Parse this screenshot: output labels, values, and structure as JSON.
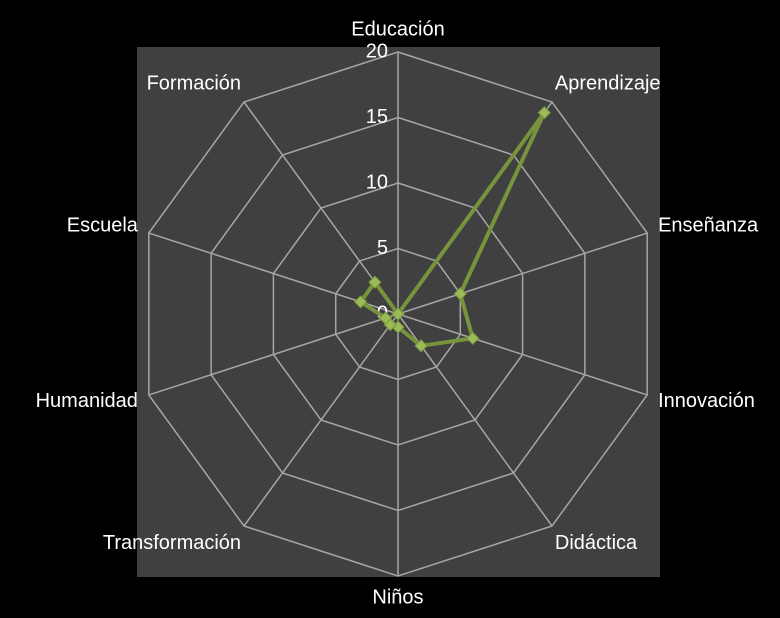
{
  "chart_data": {
    "type": "radar",
    "categories": [
      "Educación",
      "Aprendizaje",
      "Enseñanza",
      "Innovación",
      "Didáctica",
      "Niños",
      "Transformación",
      "Humanidad",
      "Escuela",
      "Formación"
    ],
    "series": [
      {
        "color": "#77933c",
        "values": [
          0,
          19,
          5,
          6,
          3,
          1,
          1,
          1,
          3,
          3
        ]
      }
    ],
    "ylim": [
      0,
      20
    ],
    "yticks": [
      0,
      5,
      10,
      15,
      20
    ],
    "grid": true
  }
}
